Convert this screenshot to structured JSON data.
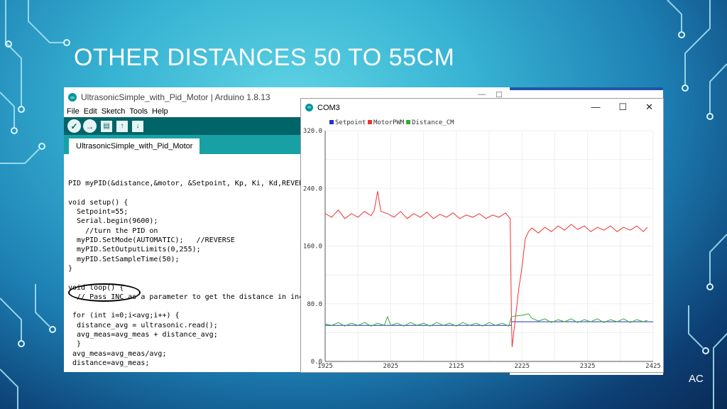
{
  "slide": {
    "title": "OTHER DISTANCES 50 TO 55CM",
    "corner_tag": "AC"
  },
  "ide": {
    "window_title": "UltrasonicSimple_with_Pid_Motor | Arduino 1.8.13",
    "menu": [
      "File",
      "Edit",
      "Sketch",
      "Tools",
      "Help"
    ],
    "toolbar_icons": [
      "verify-icon",
      "upload-icon",
      "new-icon",
      "open-icon",
      "save-icon"
    ],
    "tab_label": "UltrasonicSimple_with_Pid_Motor",
    "code_lines": [
      "",
      "PID myPID(&distance,&motor, &Setpoint, Kp, Ki, Kd,REVERSE);",
      "",
      "void setup() {",
      "  Setpoint=55;",
      "  Serial.begin(9600);",
      "    //turn the PID on",
      "  myPID.SetMode(AUTOMATIC);   //REVERSE",
      "  myPID.SetOutputLimits(0,255);",
      "  myPID.SetSampleTime(50);",
      "}",
      "",
      "void loop() {",
      "  // Pass INC as a parameter to get the distance in inches",
      "",
      " for (int i=0;i<avg;i++) {",
      "  distance_avg = ultrasonic.read();",
      "  avg_meas=avg_meas + distance_avg;",
      "  }",
      " avg_meas=avg_meas/avg;",
      " distance=avg_meas;"
    ]
  },
  "plotter": {
    "window_title": "COM3",
    "controls": [
      "—",
      "☐",
      "✕"
    ]
  },
  "chart_data": {
    "type": "line",
    "title": "",
    "xlabel": "",
    "ylabel": "",
    "xlim": [
      1925,
      2425
    ],
    "ylim": [
      0,
      320
    ],
    "x_ticks": [
      "1925",
      "2025",
      "2125",
      "2225",
      "2325",
      "2425"
    ],
    "y_ticks": [
      "0.0",
      "80.0",
      "160.0",
      "240.0",
      "320.0"
    ],
    "grid": true,
    "legend_position": "top-left",
    "series": [
      {
        "name": "Setpoint",
        "color": "#2233cc",
        "points": [
          [
            1925,
            50
          ],
          [
            2209,
            50
          ],
          [
            2209,
            55
          ],
          [
            2425,
            55
          ]
        ]
      },
      {
        "name": "MotorPWM",
        "color": "#ee3333",
        "points": [
          [
            1925,
            205
          ],
          [
            1935,
            200
          ],
          [
            1945,
            210
          ],
          [
            1955,
            198
          ],
          [
            1965,
            205
          ],
          [
            1975,
            200
          ],
          [
            1985,
            208
          ],
          [
            1995,
            202
          ],
          [
            2000,
            210
          ],
          [
            2005,
            236
          ],
          [
            2010,
            208
          ],
          [
            2020,
            205
          ],
          [
            2030,
            200
          ],
          [
            2040,
            208
          ],
          [
            2050,
            198
          ],
          [
            2060,
            205
          ],
          [
            2070,
            200
          ],
          [
            2080,
            207
          ],
          [
            2090,
            198
          ],
          [
            2100,
            204
          ],
          [
            2110,
            200
          ],
          [
            2120,
            206
          ],
          [
            2130,
            198
          ],
          [
            2140,
            203
          ],
          [
            2150,
            200
          ],
          [
            2160,
            205
          ],
          [
            2170,
            198
          ],
          [
            2180,
            203
          ],
          [
            2190,
            200
          ],
          [
            2200,
            206
          ],
          [
            2207,
            198
          ],
          [
            2209,
            60
          ],
          [
            2210,
            20
          ],
          [
            2215,
            60
          ],
          [
            2220,
            100
          ],
          [
            2225,
            130
          ],
          [
            2230,
            170
          ],
          [
            2235,
            180
          ],
          [
            2240,
            185
          ],
          [
            2250,
            178
          ],
          [
            2260,
            186
          ],
          [
            2270,
            180
          ],
          [
            2280,
            188
          ],
          [
            2290,
            182
          ],
          [
            2300,
            190
          ],
          [
            2310,
            183
          ],
          [
            2320,
            188
          ],
          [
            2330,
            180
          ],
          [
            2340,
            186
          ],
          [
            2350,
            182
          ],
          [
            2360,
            188
          ],
          [
            2370,
            180
          ],
          [
            2380,
            186
          ],
          [
            2390,
            182
          ],
          [
            2400,
            188
          ],
          [
            2410,
            180
          ],
          [
            2416,
            186
          ]
        ]
      },
      {
        "name": "Distance_CM",
        "color": "#33aa33",
        "points": [
          [
            1925,
            52
          ],
          [
            1935,
            50
          ],
          [
            1945,
            54
          ],
          [
            1955,
            49
          ],
          [
            1965,
            53
          ],
          [
            1975,
            50
          ],
          [
            1985,
            54
          ],
          [
            1995,
            49
          ],
          [
            2005,
            53
          ],
          [
            2015,
            50
          ],
          [
            2020,
            62
          ],
          [
            2025,
            50
          ],
          [
            2035,
            53
          ],
          [
            2045,
            49
          ],
          [
            2055,
            54
          ],
          [
            2065,
            50
          ],
          [
            2075,
            53
          ],
          [
            2085,
            49
          ],
          [
            2095,
            54
          ],
          [
            2105,
            50
          ],
          [
            2115,
            53
          ],
          [
            2125,
            49
          ],
          [
            2135,
            54
          ],
          [
            2145,
            50
          ],
          [
            2155,
            53
          ],
          [
            2165,
            49
          ],
          [
            2175,
            54
          ],
          [
            2185,
            50
          ],
          [
            2195,
            53
          ],
          [
            2205,
            49
          ],
          [
            2209,
            62
          ],
          [
            2215,
            63
          ],
          [
            2225,
            64
          ],
          [
            2230,
            65
          ],
          [
            2235,
            66
          ],
          [
            2240,
            60
          ],
          [
            2250,
            56
          ],
          [
            2260,
            59
          ],
          [
            2270,
            54
          ],
          [
            2280,
            58
          ],
          [
            2290,
            55
          ],
          [
            2300,
            59
          ],
          [
            2310,
            54
          ],
          [
            2320,
            58
          ],
          [
            2330,
            55
          ],
          [
            2340,
            59
          ],
          [
            2350,
            54
          ],
          [
            2360,
            58
          ],
          [
            2370,
            55
          ],
          [
            2380,
            59
          ],
          [
            2390,
            54
          ],
          [
            2400,
            58
          ],
          [
            2410,
            55
          ],
          [
            2416,
            57
          ]
        ]
      }
    ]
  }
}
